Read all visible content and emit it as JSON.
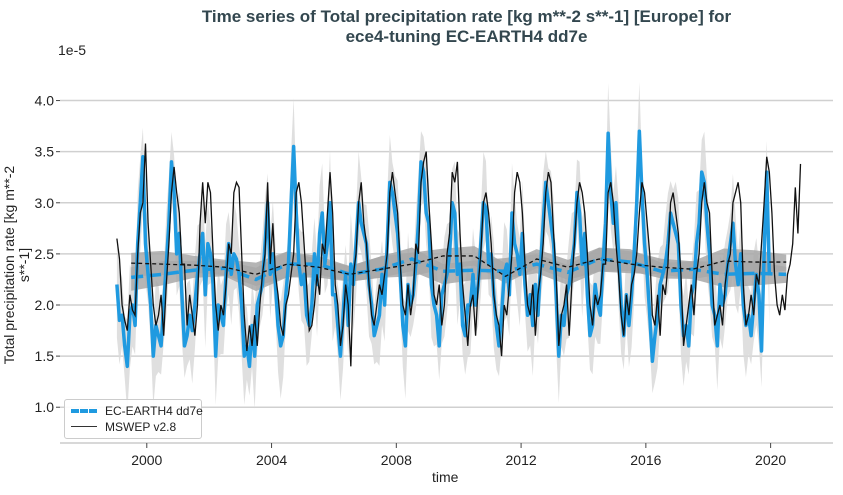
{
  "chart_data": {
    "type": "line",
    "title": "Time series of Total precipitation rate [kg m**-2 s**-1] [Europe] for",
    "title_line2": "ece4-tuning EC-EARTH4 dd7e",
    "ylabel": "Total precipitation rate [kg m**-2 s**-1]",
    "xlabel": "time",
    "y_exponent_label": "1e-5",
    "xlim": [
      1998.5,
      2022.0
    ],
    "ylim": [
      0.65,
      4.25
    ],
    "x_ticks": [
      2000,
      2004,
      2008,
      2012,
      2016,
      2020
    ],
    "x_tick_labels": [
      "2000",
      "2004",
      "2008",
      "2012",
      "2016",
      "2020"
    ],
    "y_ticks": [
      1.0,
      1.5,
      2.0,
      2.5,
      3.0,
      3.5,
      4.0
    ],
    "y_tick_labels": [
      "1.0",
      "1.5",
      "2.0",
      "2.5",
      "3.0",
      "3.5",
      "4.0"
    ],
    "grid": "horizontal",
    "legend_position": "bottom-left",
    "start_year": 1999,
    "colors": {
      "model": "#1f9ae0",
      "obs": "#111111",
      "spread": "#d9d9d9",
      "mean_band": "#a8a8a8"
    },
    "spread_halfwidth": 0.4,
    "mean_band_halfwidth": 0.1,
    "series": [
      {
        "name": "EC-EARTH4 dd7e",
        "style": "monthly",
        "values": [
          2.2,
          1.85,
          1.9,
          1.6,
          1.4,
          1.9,
          2.0,
          1.8,
          2.6,
          3.0,
          3.45,
          2.6,
          2.3,
          2.0,
          1.5,
          1.8,
          1.7,
          1.6,
          2.0,
          2.4,
          2.8,
          3.4,
          3.1,
          2.5,
          2.7,
          2.1,
          1.6,
          1.7,
          1.9,
          1.75,
          2.0,
          2.3,
          2.5,
          2.7,
          2.1,
          2.6,
          2.5,
          2.2,
          1.5,
          2.0,
          1.9,
          1.8,
          2.3,
          2.6,
          2.3,
          2.5,
          2.45,
          2.3,
          2.0,
          1.5,
          1.6,
          1.4,
          1.8,
          1.5,
          2.0,
          2.1,
          2.2,
          2.6,
          3.0,
          2.3,
          2.5,
          2.2,
          1.8,
          1.6,
          1.7,
          2.1,
          2.4,
          3.0,
          3.55,
          2.9,
          2.4,
          2.2,
          2.3,
          1.9,
          1.8,
          2.0,
          2.5,
          2.2,
          2.7,
          2.9,
          2.4,
          2.6,
          3.0,
          2.1,
          2.1,
          1.8,
          1.5,
          1.9,
          2.3,
          1.8,
          2.4,
          2.2,
          2.6,
          3.0,
          2.8,
          2.7,
          2.6,
          2.2,
          2.0,
          1.7,
          1.8,
          1.9,
          2.3,
          2.0,
          2.6,
          3.2,
          3.1,
          2.9,
          2.7,
          2.3,
          1.8,
          1.6,
          2.2,
          2.0,
          2.1,
          2.4,
          2.8,
          3.4,
          3.3,
          2.9,
          2.8,
          2.2,
          2.0,
          1.9,
          1.6,
          2.1,
          2.2,
          2.3,
          2.5,
          3.0,
          2.9,
          2.3,
          2.4,
          1.8,
          1.7,
          2.0,
          2.0,
          2.3,
          2.0,
          2.2,
          2.6,
          3.0,
          2.95,
          2.4,
          2.5,
          2.1,
          1.8,
          1.6,
          1.9,
          2.3,
          2.4,
          2.1,
          2.9,
          2.6,
          2.5,
          2.3,
          2.7,
          2.2,
          1.9,
          2.1,
          1.8,
          2.2,
          1.9,
          2.4,
          2.8,
          3.2,
          3.0,
          2.8,
          2.6,
          2.1,
          1.5,
          1.9,
          1.8,
          2.1,
          2.2,
          2.4,
          2.6,
          3.1,
          2.9,
          2.4,
          2.7,
          2.1,
          1.7,
          1.8,
          2.2,
          2.0,
          1.9,
          2.4,
          2.8,
          3.68,
          3.1,
          2.8,
          3.0,
          2.5,
          2.0,
          1.7,
          2.1,
          1.8,
          2.1,
          2.5,
          3.0,
          3.7,
          3.1,
          2.6,
          2.3,
          1.9,
          1.45,
          1.7,
          1.9,
          2.2,
          2.3,
          2.4,
          2.6,
          2.9,
          2.8,
          2.7,
          2.6,
          2.0,
          1.7,
          1.8,
          1.6,
          2.1,
          2.2,
          2.6,
          2.8,
          3.3,
          3.2,
          2.8,
          2.5,
          2.0,
          1.9,
          1.6,
          2.2,
          2.0,
          2.1,
          2.4,
          2.6,
          2.8,
          2.4,
          2.2,
          2.5,
          2.0,
          1.8,
          1.9,
          1.7,
          2.0,
          2.3,
          2.1,
          1.55,
          2.5,
          3.3,
          2.3
        ]
      },
      {
        "name": "MSWEP v2.8",
        "style": "monthly",
        "values": [
          2.65,
          2.45,
          2.0,
          1.85,
          1.75,
          2.1,
          1.95,
          1.9,
          2.5,
          2.9,
          3.0,
          3.58,
          2.8,
          2.4,
          2.0,
          1.8,
          1.9,
          2.1,
          1.7,
          2.2,
          2.6,
          3.1,
          3.35,
          3.1,
          2.9,
          2.4,
          2.4,
          1.8,
          2.1,
          1.9,
          1.7,
          2.0,
          2.8,
          3.2,
          2.8,
          3.2,
          3.1,
          2.5,
          2.0,
          1.75,
          2.0,
          1.9,
          2.2,
          2.6,
          2.5,
          3.1,
          3.2,
          3.15,
          2.5,
          1.9,
          1.55,
          1.8,
          1.6,
          1.9,
          1.6,
          2.0,
          2.3,
          2.5,
          3.2,
          2.4,
          2.8,
          2.3,
          2.1,
          1.8,
          1.7,
          2.0,
          2.1,
          2.3,
          2.5,
          3.1,
          3.2,
          3.0,
          2.6,
          2.2,
          1.75,
          1.8,
          2.0,
          2.3,
          2.1,
          2.6,
          2.5,
          2.9,
          3.3,
          2.9,
          2.2,
          2.0,
          1.6,
          1.8,
          2.2,
          2.0,
          1.4,
          2.3,
          2.5,
          3.0,
          3.2,
          2.8,
          2.6,
          2.2,
          1.9,
          1.8,
          2.0,
          2.2,
          2.1,
          2.3,
          2.5,
          3.1,
          3.3,
          3.1,
          2.9,
          2.4,
          2.0,
          1.9,
          2.2,
          1.9,
          2.1,
          2.6,
          2.5,
          3.2,
          3.4,
          3.5,
          3.0,
          2.6,
          2.1,
          2.0,
          2.2,
          1.8,
          2.0,
          2.5,
          2.7,
          3.3,
          3.2,
          3.4,
          2.7,
          2.2,
          1.9,
          1.6,
          2.0,
          2.1,
          1.7,
          2.2,
          2.5,
          3.0,
          3.1,
          2.9,
          2.6,
          2.1,
          1.9,
          1.8,
          1.5,
          2.0,
          1.9,
          2.2,
          2.5,
          3.1,
          3.3,
          3.2,
          2.9,
          2.4,
          2.0,
          1.9,
          2.2,
          1.7,
          2.1,
          2.3,
          2.6,
          3.1,
          3.3,
          3.2,
          2.7,
          2.3,
          1.6,
          1.9,
          2.0,
          2.2,
          1.7,
          2.2,
          2.6,
          3.0,
          3.2,
          3.1,
          2.9,
          2.5,
          2.0,
          1.8,
          2.1,
          2.0,
          2.1,
          2.4,
          2.4,
          3.1,
          3.2,
          3.0,
          2.6,
          2.3,
          1.9,
          1.7,
          2.1,
          1.9,
          2.2,
          2.3,
          2.5,
          2.9,
          3.2,
          3.1,
          2.8,
          2.5,
          1.9,
          1.8,
          2.1,
          1.7,
          2.2,
          2.1,
          2.4,
          3.0,
          3.1,
          2.9,
          2.7,
          2.3,
          1.6,
          1.8,
          2.0,
          2.2,
          1.9,
          2.3,
          2.5,
          3.0,
          3.2,
          3.0,
          2.9,
          2.3,
          1.8,
          1.9,
          2.0,
          1.8,
          2.2,
          2.4,
          2.5,
          3.0,
          3.1,
          3.2,
          3.0,
          2.2,
          1.8,
          1.9,
          2.1,
          1.9,
          2.3,
          2.2,
          2.6,
          3.0,
          3.45,
          3.3,
          2.9,
          2.3,
          2.0,
          1.9,
          2.1,
          1.95,
          2.3,
          2.4,
          2.6,
          3.15,
          2.7,
          3.38
        ]
      }
    ],
    "annual_means": [
      {
        "name": "EC-EARTH4 dd7e",
        "values": [
          2.27,
          2.3,
          2.34,
          2.36,
          2.25,
          2.4,
          2.4,
          2.3,
          2.35,
          2.45,
          2.33,
          2.34,
          2.33,
          2.4,
          2.32,
          2.45,
          2.42,
          2.33,
          2.35,
          2.3,
          2.31,
          2.3
        ]
      },
      {
        "name": "MSWEP v2.8",
        "values": [
          2.41,
          2.4,
          2.39,
          2.37,
          2.3,
          2.4,
          2.37,
          2.3,
          2.35,
          2.4,
          2.48,
          2.48,
          2.28,
          2.45,
          2.37,
          2.45,
          2.4,
          2.37,
          2.35,
          2.43,
          2.42,
          2.42
        ]
      }
    ]
  },
  "legend": {
    "items": [
      "EC-EARTH4 dd7e",
      "MSWEP v2.8"
    ]
  }
}
